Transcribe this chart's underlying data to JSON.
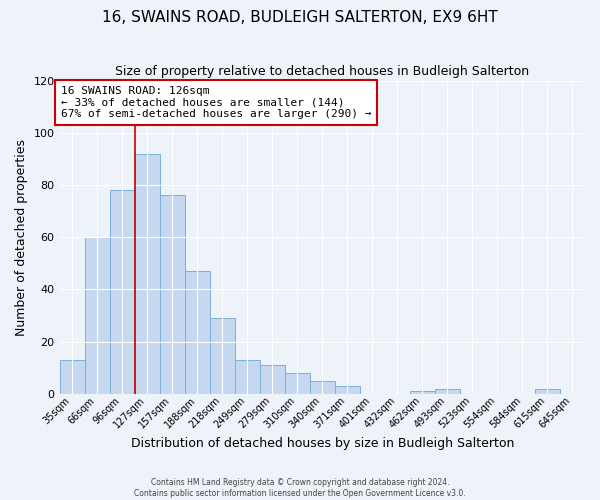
{
  "title": "16, SWAINS ROAD, BUDLEIGH SALTERTON, EX9 6HT",
  "subtitle": "Size of property relative to detached houses in Budleigh Salterton",
  "xlabel": "Distribution of detached houses by size in Budleigh Salterton",
  "ylabel": "Number of detached properties",
  "bar_labels": [
    "35sqm",
    "66sqm",
    "96sqm",
    "127sqm",
    "157sqm",
    "188sqm",
    "218sqm",
    "249sqm",
    "279sqm",
    "310sqm",
    "340sqm",
    "371sqm",
    "401sqm",
    "432sqm",
    "462sqm",
    "493sqm",
    "523sqm",
    "554sqm",
    "584sqm",
    "615sqm",
    "645sqm"
  ],
  "bar_values": [
    13,
    60,
    78,
    92,
    76,
    47,
    29,
    13,
    11,
    8,
    5,
    3,
    0,
    0,
    1,
    2,
    0,
    0,
    0,
    2,
    0
  ],
  "bar_color": "#c5d8f0",
  "bar_edge_color": "#7ab0d8",
  "ylim": [
    0,
    120
  ],
  "yticks": [
    0,
    20,
    40,
    60,
    80,
    100,
    120
  ],
  "vline_index": 3,
  "vline_color": "#cc0000",
  "annotation_title": "16 SWAINS ROAD: 126sqm",
  "annotation_line1": "← 33% of detached houses are smaller (144)",
  "annotation_line2": "67% of semi-detached houses are larger (290) →",
  "annotation_box_color": "#cc0000",
  "footer_line1": "Contains HM Land Registry data © Crown copyright and database right 2024.",
  "footer_line2": "Contains public sector information licensed under the Open Government Licence v3.0.",
  "background_color": "#eef2f9",
  "title_fontsize": 11,
  "subtitle_fontsize": 9
}
